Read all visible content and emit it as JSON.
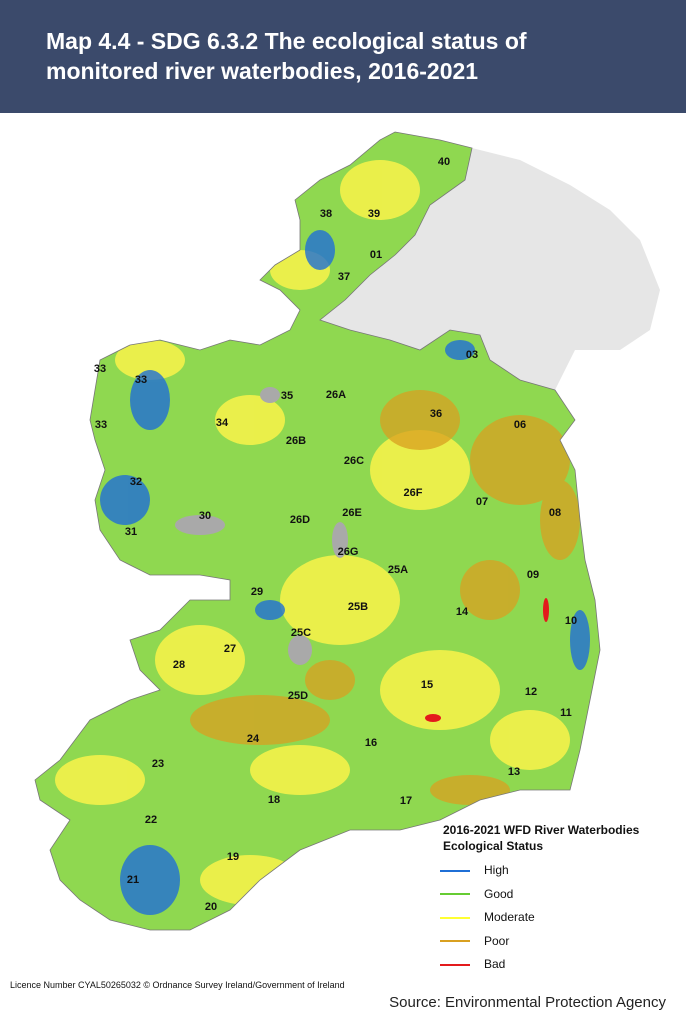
{
  "header": {
    "title": "Map 4.4 - SDG 6.3.2 The ecological status of monitored river waterbodies, 2016-2021"
  },
  "map": {
    "labels": [
      "40",
      "38",
      "39",
      "01",
      "37",
      "03",
      "33",
      "33",
      "35",
      "26A",
      "36",
      "06",
      "33",
      "34",
      "26B",
      "26C",
      "32",
      "26F",
      "07",
      "08",
      "30",
      "26D",
      "26E",
      "31",
      "26G",
      "25A",
      "09",
      "29",
      "25B",
      "14",
      "10",
      "25C",
      "27",
      "28",
      "15",
      "25D",
      "12",
      "11",
      "24",
      "16",
      "23",
      "13",
      "18",
      "17",
      "22",
      "19",
      "21",
      "20"
    ]
  },
  "legend": {
    "title": "2016-2021 WFD River Waterbodies Ecological Status",
    "items": [
      {
        "label": "High",
        "color": "#1f6fd6"
      },
      {
        "label": "Good",
        "color": "#66cc33"
      },
      {
        "label": "Moderate",
        "color": "#ffff33"
      },
      {
        "label": "Poor",
        "color": "#d9a020"
      },
      {
        "label": "Bad",
        "color": "#e31a1c"
      }
    ]
  },
  "footer": {
    "licence": "Licence Number CYAL50265032 © Ordnance Survey Ireland/Government of Ireland",
    "source": "Source: Environmental Protection Agency"
  }
}
